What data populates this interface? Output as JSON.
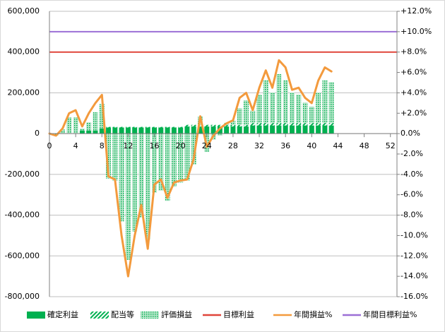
{
  "chart_data": {
    "type": "bar",
    "x": [
      1,
      2,
      3,
      4,
      5,
      6,
      7,
      8,
      9,
      10,
      11,
      12,
      13,
      14,
      15,
      16,
      17,
      18,
      19,
      20,
      21,
      22,
      23,
      24,
      25,
      26,
      27,
      28,
      29,
      30,
      31,
      32,
      33,
      34,
      35,
      36,
      37,
      38,
      39,
      40,
      41,
      42,
      43
    ],
    "xlim": [
      0,
      53
    ],
    "xticks": [
      0,
      4,
      8,
      12,
      16,
      20,
      24,
      28,
      32,
      36,
      40,
      44,
      48,
      52
    ],
    "ylim": [
      -800000,
      600000
    ],
    "yticks": [
      {
        "value": 600000,
        "label": "600,000"
      },
      {
        "value": 400000,
        "label": "400,000"
      },
      {
        "value": 200000,
        "label": "200,000"
      },
      0,
      {
        "value": -200000,
        "label": "-200,000"
      },
      {
        "value": -400000,
        "label": "-400,000"
      },
      {
        "value": -600000,
        "label": "-600,000"
      },
      {
        "value": -800000,
        "label": "-800,000"
      }
    ],
    "y2lim": [
      -16,
      12
    ],
    "y2ticks": [
      {
        "value": 12,
        "label": "+12.0%"
      },
      {
        "value": 10,
        "label": "+10.0%"
      },
      {
        "value": 8,
        "label": "+8.0%"
      },
      {
        "value": 6,
        "label": "+6.0%"
      },
      {
        "value": 4,
        "label": "+4.0%"
      },
      {
        "value": 2,
        "label": "+2.0%"
      },
      {
        "value": 0,
        "label": "0.0%"
      },
      {
        "value": -2,
        "label": "-2.0%"
      },
      {
        "value": -4,
        "label": "-4.0%"
      },
      {
        "value": -6,
        "label": "-6.0%"
      },
      {
        "value": -8,
        "label": "-8.0%"
      },
      {
        "value": -10,
        "label": "-10.0%"
      },
      {
        "value": -12,
        "label": "-12.0%"
      },
      {
        "value": -14,
        "label": "-14.0%"
      },
      {
        "value": -16,
        "label": "-16.0%"
      }
    ],
    "grid": true,
    "legend": "bottom",
    "series": [
      {
        "name": "確定利益",
        "type": "bar",
        "color": "#00b050",
        "pattern": "solid",
        "values": [
          0,
          0,
          0,
          0,
          15000,
          15000,
          15000,
          25000,
          30000,
          30000,
          30000,
          30000,
          30000,
          30000,
          30000,
          30000,
          30000,
          30000,
          30000,
          30000,
          35000,
          35000,
          35000,
          35000,
          35000,
          35000,
          35000,
          35000,
          35000,
          35000,
          40000,
          40000,
          40000,
          40000,
          40000,
          40000,
          40000,
          40000,
          40000,
          40000,
          40000,
          40000,
          40000
        ]
      },
      {
        "name": "配当等",
        "type": "bar",
        "color": "#00b050",
        "pattern": "diagonal",
        "values": [
          0,
          0,
          0,
          0,
          0,
          0,
          0,
          0,
          3000,
          3000,
          3000,
          3000,
          3000,
          3000,
          3000,
          3000,
          3000,
          3000,
          3000,
          3000,
          8000,
          8000,
          8000,
          8000,
          8000,
          8000,
          8000,
          8000,
          8000,
          8000,
          12000,
          12000,
          12000,
          12000,
          12000,
          12000,
          12000,
          12000,
          12000,
          12000,
          12000,
          12000,
          12000
        ]
      },
      {
        "name": "評価損益",
        "type": "bar",
        "color": "#00b050",
        "pattern": "dots",
        "values": [
          -10000,
          20000,
          80000,
          80000,
          10000,
          40000,
          90000,
          120000,
          -220000,
          -230000,
          -430000,
          -620000,
          -480000,
          -410000,
          -520000,
          -290000,
          -280000,
          -330000,
          -260000,
          -240000,
          -230000,
          -150000,
          40000,
          -90000,
          -30000,
          -10000,
          10000,
          20000,
          80000,
          120000,
          60000,
          140000,
          210000,
          150000,
          240000,
          210000,
          150000,
          140000,
          100000,
          80000,
          150000,
          210000,
          200000
        ]
      },
      {
        "name": "目標利益",
        "type": "hline",
        "color": "#e0453a",
        "value": 400000
      },
      {
        "name": "年間損益%",
        "type": "line",
        "color": "#f39a3d",
        "axis": "y2",
        "x": [
          0,
          1,
          2,
          3,
          4,
          5,
          6,
          7,
          8,
          9,
          10,
          11,
          12,
          13,
          14,
          15,
          16,
          17,
          18,
          19,
          20,
          21,
          22,
          23,
          24,
          25,
          26,
          27,
          28,
          29,
          30,
          31,
          32,
          33,
          34,
          35,
          36,
          37,
          38,
          39,
          40,
          41,
          42,
          43
        ],
        "values": [
          0,
          -0.2,
          0.5,
          2.0,
          2.3,
          0.7,
          2.0,
          3.0,
          3.8,
          -4.2,
          -4.5,
          -10.0,
          -14.0,
          -10.0,
          -7.0,
          -11.3,
          -5.0,
          -4.5,
          -6.3,
          -4.8,
          -4.6,
          -4.5,
          -2.5,
          1.7,
          -1.3,
          -0.2,
          0.5,
          1.0,
          1.3,
          3.5,
          4.0,
          2.3,
          4.5,
          6.2,
          4.5,
          7.2,
          6.5,
          4.3,
          4.5,
          3.5,
          3.0,
          5.2,
          6.5,
          6.1
        ]
      },
      {
        "name": "年間目標利益%",
        "type": "hline",
        "color": "#9b6fd6",
        "axis": "y2",
        "value": 10
      }
    ]
  }
}
